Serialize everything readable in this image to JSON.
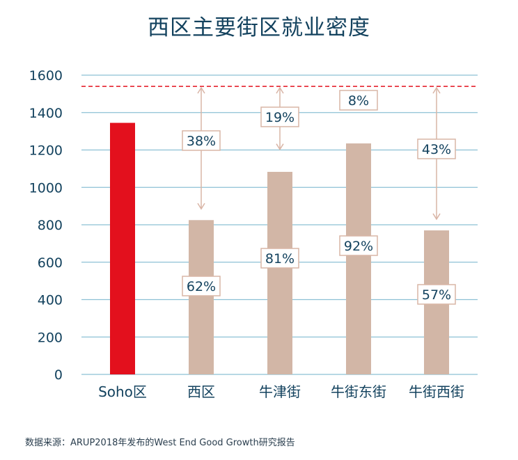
{
  "chart_data": {
    "type": "bar",
    "title": "西区主要街区就业密度",
    "categories": [
      "Soho区",
      "西区",
      "牛津街",
      "牛街东街",
      "牛街西街"
    ],
    "values": [
      1345,
      825,
      1083,
      1235,
      770
    ],
    "ylim": [
      0,
      1600
    ],
    "yticks": [
      0,
      200,
      400,
      600,
      800,
      1000,
      1200,
      1400,
      1600
    ],
    "grid": true,
    "reference_line": 1540,
    "in_bar_labels": [
      "",
      "62%",
      "81%",
      "92%",
      "57%"
    ],
    "gap_labels": [
      "",
      "38%",
      "19%",
      "8%",
      "43%"
    ],
    "colors": {
      "highlight": "#e3101d",
      "bar": "#d2b6a6",
      "grid": "#8cc0d4",
      "reference": "#e3101d",
      "arrow": "#d9b5a6",
      "label_border": "#d9b5a6",
      "text": "#13425e"
    }
  },
  "source": "数据来源：ARUP2018年发布的West End Good Growth研究报告"
}
